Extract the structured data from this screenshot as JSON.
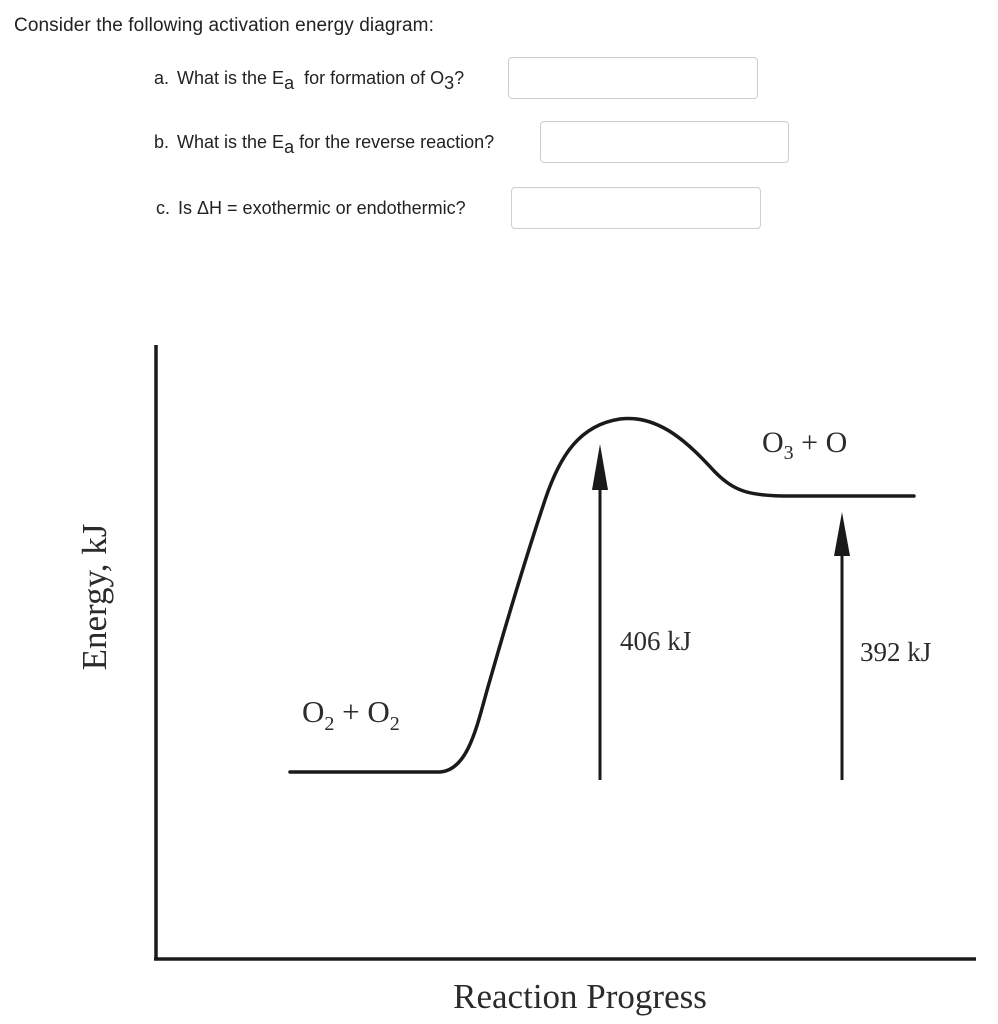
{
  "intro": "Consider the following activation energy diagram:",
  "questions": [
    {
      "prefix": "a.",
      "text_before": "What is the E",
      "sub": "a",
      "text_mid": "for formation of O",
      "sub2": "3",
      "text_after": "?",
      "answer": ""
    },
    {
      "prefix": "b.",
      "text_before": "What is the E",
      "sub": "a",
      "text_mid": "for the reverse reaction?",
      "answer": ""
    },
    {
      "prefix": "c.",
      "text": "Is ΔH = exothermic or endothermic?",
      "answer": ""
    }
  ],
  "diagram": {
    "y_axis_label": "Energy, kJ",
    "x_axis_label": "Reaction Progress",
    "reactants": {
      "base": "O",
      "sub1": "2",
      "plus": " + ",
      "base2": "O",
      "sub2": "2"
    },
    "products": {
      "base": "O",
      "sub1": "3",
      "plus": " + ",
      "base2": "O"
    },
    "forward_energy": "406 kJ",
    "reverse_energy": "392 kJ",
    "line_color": "#1a1a1a"
  }
}
